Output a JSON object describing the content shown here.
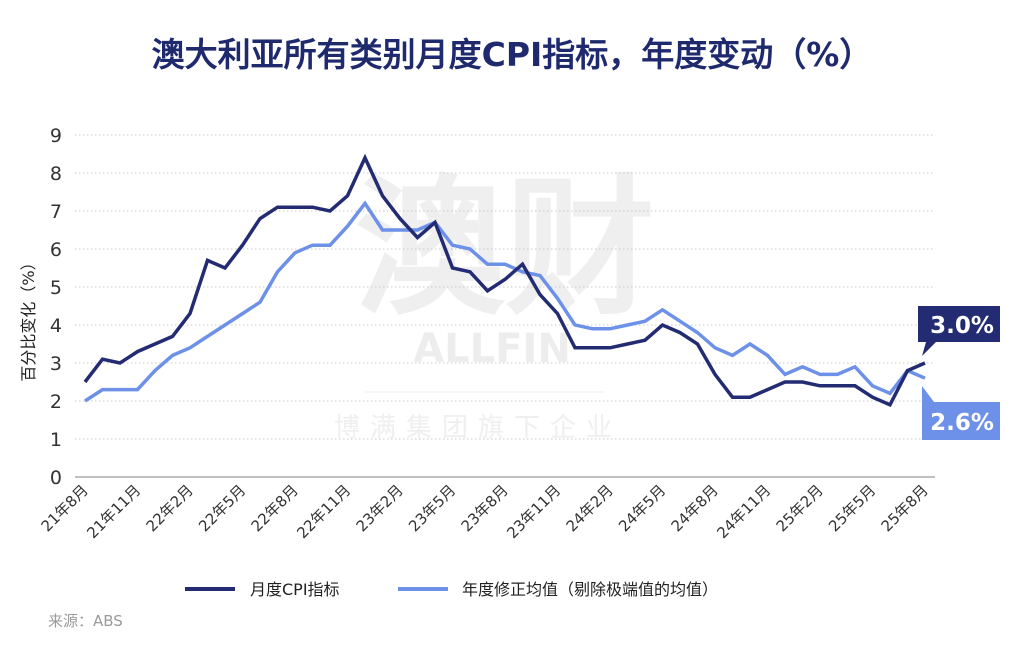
{
  "title": "澳大利亚所有类别月度CPI指标，年度变动（%）",
  "source": "来源：ABS",
  "logo": "ALLFIN 澳财®",
  "watermark": {
    "main": "澳财",
    "brand": "ALLFIN",
    "sub": "博满集团旗下企业"
  },
  "chart_data": {
    "type": "line",
    "title": "澳大利亚所有类别月度CPI指标，年度变动（%）",
    "ylabel": "百分比变化（%）",
    "xlabel": "",
    "ylim": [
      0,
      9
    ],
    "yticks": [
      "0",
      "1",
      "2",
      "3",
      "4",
      "5",
      "6",
      "7",
      "8",
      "9"
    ],
    "grid": true,
    "legend_position": "bottom",
    "x_tick_labels": [
      "21年8月",
      "21年11月",
      "22年2月",
      "22年5月",
      "22年8月",
      "22年11月",
      "23年2月",
      "23年5月",
      "23年8月",
      "23年11月",
      "24年2月",
      "24年5月",
      "24年8月",
      "24年11月",
      "25年2月",
      "25年5月",
      "25年8月"
    ],
    "x_start": "2021-08",
    "x_end": "2025-08",
    "x_frequency": "monthly",
    "series": [
      {
        "name": "月度CPI指标",
        "color": "#232b72",
        "end_label": "3.0%",
        "values": [
          2.5,
          3.1,
          3.0,
          3.3,
          3.5,
          3.7,
          4.3,
          5.7,
          5.5,
          6.1,
          6.8,
          7.1,
          7.1,
          7.1,
          7.0,
          7.4,
          8.4,
          7.4,
          6.8,
          6.3,
          6.7,
          5.5,
          5.4,
          4.9,
          5.2,
          5.6,
          4.8,
          4.3,
          3.4,
          3.4,
          3.4,
          3.5,
          3.6,
          4.0,
          3.8,
          3.5,
          2.7,
          2.1,
          2.1,
          2.3,
          2.5,
          2.5,
          2.4,
          2.4,
          2.4,
          2.1,
          1.9,
          2.8,
          3.0
        ]
      },
      {
        "name": "年度修正均值（剔除极端值的均值）",
        "color": "#6d90e8",
        "end_label": "2.6%",
        "values": [
          2.0,
          2.3,
          2.3,
          2.3,
          2.8,
          3.2,
          3.4,
          3.7,
          4.0,
          4.3,
          4.6,
          5.4,
          5.9,
          6.1,
          6.1,
          6.6,
          7.2,
          6.5,
          6.5,
          6.5,
          6.7,
          6.1,
          6.0,
          5.6,
          5.6,
          5.4,
          5.3,
          4.7,
          4.0,
          3.9,
          3.9,
          4.0,
          4.1,
          4.4,
          4.1,
          3.8,
          3.4,
          3.2,
          3.5,
          3.2,
          2.7,
          2.9,
          2.7,
          2.7,
          2.9,
          2.4,
          2.2,
          2.8,
          2.6
        ]
      }
    ]
  }
}
